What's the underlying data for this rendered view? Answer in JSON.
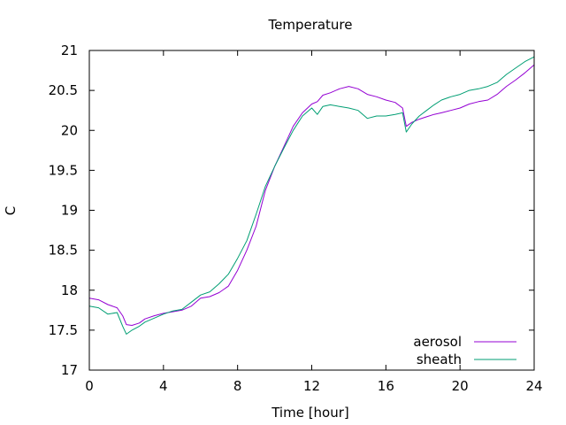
{
  "chart_data": {
    "type": "line",
    "title": "Temperature",
    "xlabel": "Time [hour]",
    "ylabel": "C",
    "xlim": [
      0,
      24
    ],
    "ylim": [
      17,
      21
    ],
    "xticks": [
      0,
      4,
      8,
      12,
      16,
      20,
      24
    ],
    "yticks": [
      17,
      17.5,
      18,
      18.5,
      19,
      19.5,
      20,
      20.5,
      21
    ],
    "xtick_labels": [
      "0",
      "4",
      "8",
      "12",
      "16",
      "20",
      "24"
    ],
    "ytick_labels": [
      "17",
      "17.5",
      "18",
      "18.5",
      "19",
      "19.5",
      "20",
      "20.5",
      "21"
    ],
    "grid": false,
    "legend_position": "bottom-right",
    "series": [
      {
        "name": "aerosol",
        "color": "#9400d3",
        "x": [
          0,
          0.5,
          1,
          1.5,
          1.8,
          2,
          2.3,
          2.7,
          3,
          3.5,
          4,
          4.5,
          5,
          5.5,
          6,
          6.5,
          7,
          7.5,
          8,
          8.5,
          9,
          9.5,
          10,
          10.5,
          11,
          11.5,
          12,
          12.3,
          12.6,
          13,
          13.5,
          14,
          14.5,
          15,
          15.5,
          16,
          16.5,
          16.9,
          17.1,
          17.4,
          17.8,
          18.2,
          18.6,
          19,
          19.5,
          20,
          20.5,
          21,
          21.5,
          22,
          22.5,
          23,
          23.5,
          24
        ],
        "y": [
          17.9,
          17.88,
          17.82,
          17.78,
          17.68,
          17.57,
          17.56,
          17.59,
          17.64,
          17.68,
          17.71,
          17.73,
          17.75,
          17.8,
          17.9,
          17.92,
          17.97,
          18.05,
          18.25,
          18.5,
          18.8,
          19.25,
          19.55,
          19.8,
          20.05,
          20.22,
          20.33,
          20.36,
          20.44,
          20.47,
          20.52,
          20.55,
          20.52,
          20.45,
          20.42,
          20.38,
          20.35,
          20.28,
          20.05,
          20.1,
          20.14,
          20.17,
          20.2,
          20.22,
          20.25,
          20.28,
          20.33,
          20.36,
          20.38,
          20.45,
          20.55,
          20.63,
          20.72,
          20.82
        ]
      },
      {
        "name": "sheath",
        "color": "#009e73",
        "x": [
          0,
          0.5,
          1,
          1.5,
          1.8,
          2,
          2.3,
          2.7,
          3,
          3.5,
          4,
          4.5,
          5,
          5.5,
          6,
          6.5,
          7,
          7.5,
          8,
          8.5,
          9,
          9.5,
          10,
          10.5,
          11,
          11.5,
          12,
          12.3,
          12.6,
          13,
          13.5,
          14,
          14.5,
          15,
          15.5,
          16,
          16.5,
          16.9,
          17.1,
          17.4,
          17.8,
          18.2,
          18.6,
          19,
          19.5,
          20,
          20.5,
          21,
          21.5,
          22,
          22.5,
          23,
          23.5,
          24
        ],
        "y": [
          17.8,
          17.78,
          17.7,
          17.72,
          17.55,
          17.45,
          17.5,
          17.55,
          17.6,
          17.65,
          17.7,
          17.74,
          17.76,
          17.85,
          17.94,
          17.98,
          18.08,
          18.2,
          18.4,
          18.62,
          18.95,
          19.3,
          19.55,
          19.78,
          20.0,
          20.18,
          20.28,
          20.2,
          20.3,
          20.32,
          20.3,
          20.28,
          20.25,
          20.15,
          20.18,
          20.18,
          20.2,
          20.22,
          19.98,
          20.08,
          20.18,
          20.25,
          20.32,
          20.38,
          20.42,
          20.45,
          20.5,
          20.52,
          20.55,
          20.6,
          20.7,
          20.78,
          20.86,
          20.92
        ]
      }
    ]
  }
}
